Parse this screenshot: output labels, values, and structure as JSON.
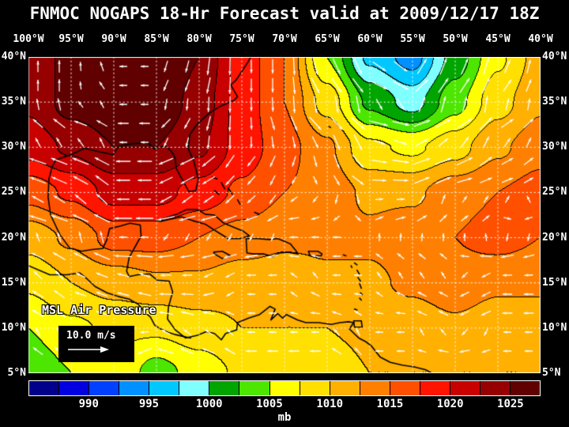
{
  "title": "FNMOC NOGAPS 18-Hr Forecast valid at 2009/12/17 18Z",
  "map_overlay": {
    "field_label": "MSL Air Pressure",
    "wind_scale_label": "10.0 m/s"
  },
  "axes": {
    "lon_labels": [
      "100°W",
      "95°W",
      "90°W",
      "85°W",
      "80°W",
      "75°W",
      "70°W",
      "65°W",
      "60°W",
      "55°W",
      "50°W",
      "45°W",
      "40°W"
    ],
    "lat_labels": [
      "40°N",
      "35°N",
      "30°N",
      "25°N",
      "20°N",
      "15°N",
      "10°N",
      "5°N"
    ]
  },
  "colorbar": {
    "unit": "mb",
    "min": 985,
    "step": 2.5,
    "tick_values": [
      990,
      995,
      1000,
      1005,
      1010,
      1015,
      1020,
      1025
    ],
    "colors": [
      "#00008B",
      "#0000E0",
      "#0040FF",
      "#0090FF",
      "#00C8FF",
      "#7FFFFF",
      "#00A500",
      "#4CE600",
      "#FFFF00",
      "#FFE000",
      "#FFB000",
      "#FF8000",
      "#FF5000",
      "#FF1400",
      "#C80000",
      "#960000",
      "#600000"
    ]
  },
  "chart_data": {
    "type": "heatmap",
    "title": "FNMOC NOGAPS 18-Hr Forecast valid at 2009/12/17 18Z",
    "field": "MSL Air Pressure (mb) with surface wind vectors",
    "wind_scale_mps": 10.0,
    "levels_mb": {
      "min": 985,
      "max": 1027.5,
      "step": 2.5
    },
    "lon_deg_west": [
      100,
      95,
      90,
      85,
      80,
      75,
      70,
      65,
      60,
      55,
      50,
      45,
      40
    ],
    "lat_deg_north": [
      40,
      35,
      30,
      25,
      20,
      15,
      10,
      5
    ],
    "pressure_mb": [
      [
        1023,
        1026,
        1028,
        1028,
        1025,
        1019,
        1015,
        1005,
        997,
        994,
        1001,
        1007,
        1011
      ],
      [
        1023,
        1026,
        1027,
        1027,
        1024,
        1019,
        1015,
        1009,
        1002,
        999,
        1004,
        1009,
        1012
      ],
      [
        1021,
        1023,
        1025,
        1025,
        1023,
        1019,
        1016,
        1013,
        1008,
        1007,
        1009,
        1012,
        1014
      ],
      [
        1016,
        1018,
        1021,
        1021,
        1019,
        1017,
        1015,
        1014,
        1012,
        1012,
        1014,
        1015,
        1016
      ],
      [
        1011,
        1013,
        1016,
        1016,
        1015,
        1014,
        1013,
        1013,
        1013,
        1014,
        1015,
        1016,
        1015
      ],
      [
        1008,
        1010,
        1011,
        1012,
        1012,
        1011,
        1011,
        1012,
        1012,
        1013,
        1014,
        1013,
        1013
      ],
      [
        1005,
        1007,
        1008,
        1008,
        1009,
        1010,
        1010,
        1010,
        1011,
        1011,
        1012,
        1011,
        1011
      ],
      [
        1003,
        1005,
        1007,
        1004,
        1006,
        1008,
        1008,
        1008,
        1010,
        1010,
        1010,
        1010,
        1010
      ]
    ]
  },
  "coastlines": [
    [
      [
        73.9,
        40.1
      ],
      [
        74.3,
        39.4
      ],
      [
        75.0,
        38.4
      ],
      [
        75.7,
        37.4
      ],
      [
        76.3,
        36.9
      ],
      [
        75.5,
        35.6
      ],
      [
        75.9,
        35.2
      ],
      [
        77.6,
        34.5
      ],
      [
        78.8,
        33.8
      ],
      [
        80.2,
        32.6
      ],
      [
        81.1,
        31.4
      ],
      [
        81.3,
        29.9
      ],
      [
        80.6,
        28.4
      ],
      [
        80.1,
        26.5
      ],
      [
        80.4,
        25.2
      ],
      [
        81.2,
        25.1
      ],
      [
        81.9,
        26.3
      ],
      [
        82.7,
        27.7
      ],
      [
        82.8,
        28.8
      ],
      [
        83.2,
        29.5
      ],
      [
        84.0,
        30.2
      ],
      [
        85.2,
        29.8
      ],
      [
        86.0,
        30.5
      ],
      [
        87.9,
        30.4
      ],
      [
        89.4,
        30.1
      ],
      [
        90.1,
        29.2
      ],
      [
        91.7,
        29.5
      ],
      [
        93.4,
        29.9
      ],
      [
        95.0,
        29.2
      ],
      [
        96.8,
        28.6
      ],
      [
        97.2,
        27.9
      ],
      [
        97.6,
        26.5
      ],
      [
        97.7,
        24.5
      ],
      [
        97.4,
        22.5
      ],
      [
        96.3,
        20.3
      ],
      [
        95.2,
        18.9
      ],
      [
        93.8,
        18.5
      ],
      [
        92.5,
        18.7
      ],
      [
        91.3,
        18.8
      ],
      [
        90.8,
        19.8
      ],
      [
        90.5,
        21.0
      ],
      [
        89.2,
        21.3
      ],
      [
        88.1,
        21.6
      ],
      [
        86.9,
        21.4
      ],
      [
        86.8,
        20.2
      ],
      [
        87.5,
        19.0
      ],
      [
        88.2,
        17.8
      ],
      [
        88.5,
        16.3
      ],
      [
        88.2,
        15.7
      ],
      [
        87.2,
        15.9
      ],
      [
        85.8,
        16.0
      ],
      [
        84.9,
        15.3
      ],
      [
        83.5,
        15.2
      ],
      [
        83.1,
        14.0
      ],
      [
        83.6,
        12.3
      ],
      [
        83.7,
        11.0
      ],
      [
        82.8,
        9.8
      ],
      [
        81.6,
        8.9
      ],
      [
        80.2,
        9.2
      ],
      [
        79.2,
        9.6
      ],
      [
        78.2,
        9.4
      ],
      [
        77.4,
        8.7
      ],
      [
        76.9,
        9.4
      ],
      [
        75.6,
        9.8
      ],
      [
        75.5,
        10.6
      ],
      [
        74.2,
        11.1
      ],
      [
        72.9,
        11.5
      ],
      [
        71.7,
        12.4
      ],
      [
        71.1,
        12.1
      ],
      [
        71.6,
        10.9
      ],
      [
        70.8,
        11.6
      ],
      [
        70.2,
        11.1
      ],
      [
        69.8,
        11.5
      ],
      [
        68.5,
        10.9
      ],
      [
        67.5,
        10.6
      ],
      [
        66.0,
        10.6
      ],
      [
        64.5,
        10.4
      ],
      [
        63.5,
        10.6
      ],
      [
        62.5,
        10.7
      ],
      [
        61.9,
        10.6
      ],
      [
        62.4,
        9.9
      ],
      [
        61.3,
        8.9
      ],
      [
        60.5,
        8.5
      ],
      [
        59.8,
        8.0
      ],
      [
        58.8,
        6.8
      ],
      [
        57.6,
        6.2
      ],
      [
        56.2,
        5.9
      ],
      [
        54.8,
        5.7
      ],
      [
        53.5,
        5.4
      ],
      [
        52.5,
        4.9
      ]
    ],
    [
      [
        100.0,
        16.9
      ],
      [
        97.5,
        15.9
      ],
      [
        95.5,
        15.9
      ],
      [
        94.0,
        16.1
      ],
      [
        93.2,
        15.5
      ],
      [
        92.2,
        14.6
      ],
      [
        90.8,
        13.9
      ],
      [
        89.5,
        13.5
      ],
      [
        88.2,
        13.2
      ],
      [
        87.1,
        12.6
      ],
      [
        86.4,
        11.8
      ],
      [
        85.7,
        11.2
      ],
      [
        85.2,
        10.3
      ],
      [
        84.5,
        9.9
      ],
      [
        83.6,
        9.5
      ],
      [
        82.9,
        9.3
      ],
      [
        82.0,
        9.1
      ],
      [
        81.0,
        8.9
      ]
    ],
    [
      [
        84.9,
        21.9
      ],
      [
        83.9,
        22.2
      ],
      [
        82.6,
        22.6
      ],
      [
        81.5,
        23.1
      ],
      [
        80.2,
        23.1
      ],
      [
        79.3,
        22.6
      ],
      [
        78.2,
        22.5
      ],
      [
        77.1,
        21.6
      ],
      [
        76.1,
        21.2
      ],
      [
        74.8,
        20.7
      ],
      [
        74.1,
        20.2
      ],
      [
        75.2,
        19.9
      ],
      [
        76.6,
        19.9
      ],
      [
        77.8,
        20.6
      ],
      [
        79.3,
        21.5
      ],
      [
        80.8,
        21.9
      ],
      [
        82.1,
        22.3
      ],
      [
        83.6,
        22.0
      ],
      [
        84.5,
        21.8
      ],
      [
        84.9,
        21.9
      ]
    ],
    [
      [
        74.5,
        19.9
      ],
      [
        73.2,
        19.9
      ],
      [
        71.8,
        19.8
      ],
      [
        70.8,
        19.9
      ],
      [
        70.0,
        19.6
      ],
      [
        69.3,
        19.3
      ],
      [
        68.7,
        18.6
      ],
      [
        68.4,
        18.2
      ],
      [
        69.6,
        18.4
      ],
      [
        70.6,
        18.3
      ],
      [
        71.4,
        17.9
      ],
      [
        72.4,
        18.2
      ],
      [
        73.6,
        18.2
      ],
      [
        74.4,
        18.3
      ],
      [
        74.5,
        19.9
      ]
    ],
    [
      [
        78.3,
        18.4
      ],
      [
        77.3,
        18.5
      ],
      [
        76.3,
        18.0
      ],
      [
        77.3,
        17.7
      ],
      [
        78.2,
        18.2
      ],
      [
        78.3,
        18.4
      ]
    ],
    [
      [
        67.2,
        18.5
      ],
      [
        66.1,
        18.5
      ],
      [
        65.6,
        18.2
      ],
      [
        65.7,
        18.0
      ],
      [
        67.0,
        18.0
      ],
      [
        67.2,
        18.5
      ]
    ],
    [
      [
        78.5,
        26.7
      ],
      [
        77.9,
        26.5
      ]
    ],
    [
      [
        77.4,
        26.1
      ],
      [
        77.0,
        25.4
      ]
    ],
    [
      [
        78.2,
        25.2
      ],
      [
        77.7,
        24.8
      ]
    ],
    [
      [
        76.6,
        25.5
      ],
      [
        76.1,
        24.8
      ]
    ],
    [
      [
        75.5,
        24.2
      ],
      [
        75.2,
        23.7
      ]
    ],
    [
      [
        73.5,
        22.8
      ],
      [
        73.0,
        22.6
      ]
    ],
    [
      [
        64.8,
        32.3
      ],
      [
        64.6,
        32.2
      ]
    ],
    [
      [
        63.1,
        18.1
      ],
      [
        62.8,
        18.0
      ]
    ],
    [
      [
        62.2,
        16.9
      ],
      [
        62.1,
        16.7
      ]
    ],
    [
      [
        61.8,
        17.2
      ],
      [
        61.5,
        17.0
      ]
    ],
    [
      [
        61.5,
        16.4
      ],
      [
        61.2,
        15.9
      ]
    ],
    [
      [
        61.4,
        15.6
      ],
      [
        61.1,
        15.2
      ]
    ],
    [
      [
        61.2,
        14.9
      ],
      [
        61.0,
        14.4
      ]
    ],
    [
      [
        61.1,
        13.9
      ],
      [
        60.9,
        13.7
      ]
    ],
    [
      [
        61.2,
        13.3
      ],
      [
        61.0,
        13.1
      ]
    ],
    [
      [
        61.8,
        12.1
      ],
      [
        61.5,
        12.0
      ]
    ],
    [
      [
        61.9,
        10.8
      ],
      [
        61.0,
        10.8
      ],
      [
        60.9,
        10.1
      ],
      [
        61.8,
        10.1
      ],
      [
        61.9,
        10.8
      ]
    ]
  ],
  "style": {
    "background": "#000000",
    "text": "#FFFFFF",
    "contour": "#000000",
    "arrow": "#FFFFFF",
    "grid": "#FFFFFF"
  }
}
